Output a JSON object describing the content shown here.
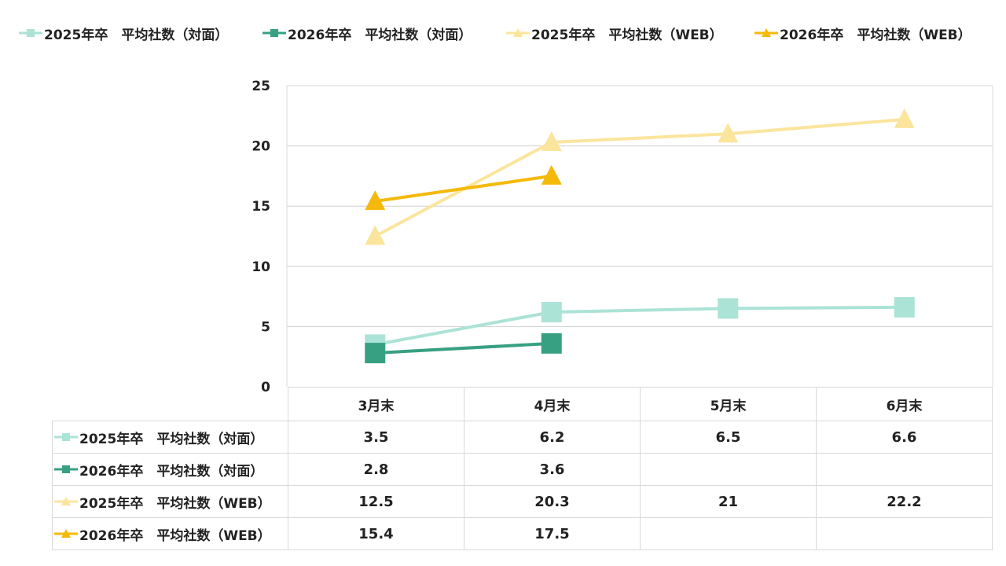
{
  "chart_data": {
    "type": "line",
    "categories": [
      "3月末",
      "4月末",
      "5月末",
      "6月末"
    ],
    "ylim": [
      0,
      25
    ],
    "yticks": [
      0,
      5,
      10,
      15,
      20,
      25
    ],
    "grid": true,
    "legend_position": "top",
    "series": [
      {
        "name": "2025年卒　平均社数（対面）",
        "marker": "square",
        "color": "#ABE3D6",
        "values": [
          3.5,
          6.2,
          6.5,
          6.6
        ]
      },
      {
        "name": "2026年卒　平均社数（対面）",
        "marker": "square",
        "color": "#37A083",
        "values": [
          2.8,
          3.6,
          null,
          null
        ]
      },
      {
        "name": "2025年卒　平均社数（WEB）",
        "marker": "triangle",
        "color": "#FBE59D",
        "values": [
          12.5,
          20.3,
          21,
          22.2
        ]
      },
      {
        "name": "2026年卒　平均社数（WEB）",
        "marker": "triangle",
        "color": "#F4B90A",
        "values": [
          15.4,
          17.5,
          null,
          null
        ]
      }
    ],
    "table_values": [
      [
        "3.5",
        "6.2",
        "6.5",
        "6.6"
      ],
      [
        "2.8",
        "3.6",
        "",
        ""
      ],
      [
        "12.5",
        "20.3",
        "21",
        "22.2"
      ],
      [
        "15.4",
        "17.5",
        "",
        ""
      ]
    ]
  }
}
